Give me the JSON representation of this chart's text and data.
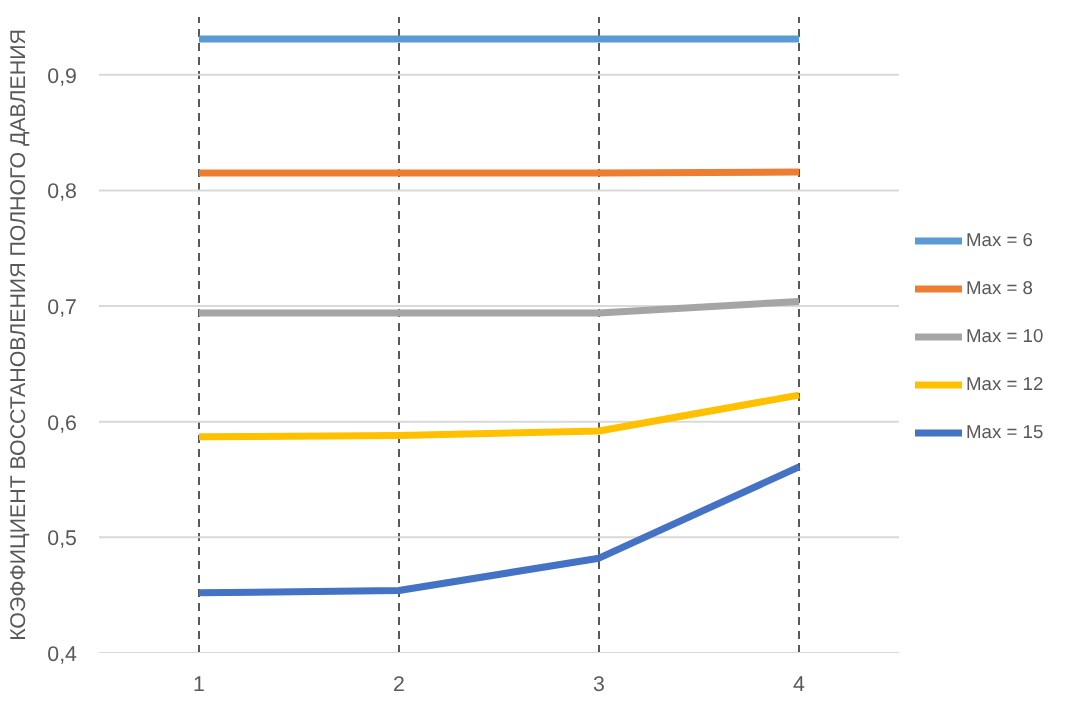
{
  "chart_data": {
    "type": "line",
    "ylabel": "КОЭФФИЦИЕНТ ВОССТАНОВЛЕНИЯ ПОЛНОГО ДАВЛЕНИЯ",
    "categories": [
      "1",
      "2",
      "3",
      "4"
    ],
    "ylim": [
      0.4,
      0.95
    ],
    "yticks": [
      {
        "value": 0.4,
        "label": "0,4"
      },
      {
        "value": 0.5,
        "label": "0,5"
      },
      {
        "value": 0.6,
        "label": "0,6"
      },
      {
        "value": 0.7,
        "label": "0,7"
      },
      {
        "value": 0.8,
        "label": "0,8"
      },
      {
        "value": 0.9,
        "label": "0,9"
      }
    ],
    "grid": true,
    "legend": "right",
    "marker": "none",
    "line_style": "solid",
    "series": [
      {
        "name": "Max = 6",
        "color": "#5b9bd5",
        "values": [
          0.931,
          0.931,
          0.931,
          0.931
        ]
      },
      {
        "name": "Max = 8",
        "color": "#ed7d31",
        "values": [
          0.815,
          0.815,
          0.815,
          0.816
        ]
      },
      {
        "name": "Max = 10",
        "color": "#a5a5a5",
        "values": [
          0.694,
          0.694,
          0.694,
          0.704
        ]
      },
      {
        "name": "Max = 12",
        "color": "#ffc000",
        "values": [
          0.587,
          0.588,
          0.592,
          0.623
        ]
      },
      {
        "name": "Max = 15",
        "color": "#4472c4",
        "values": [
          0.452,
          0.454,
          0.482,
          0.561
        ]
      }
    ]
  }
}
